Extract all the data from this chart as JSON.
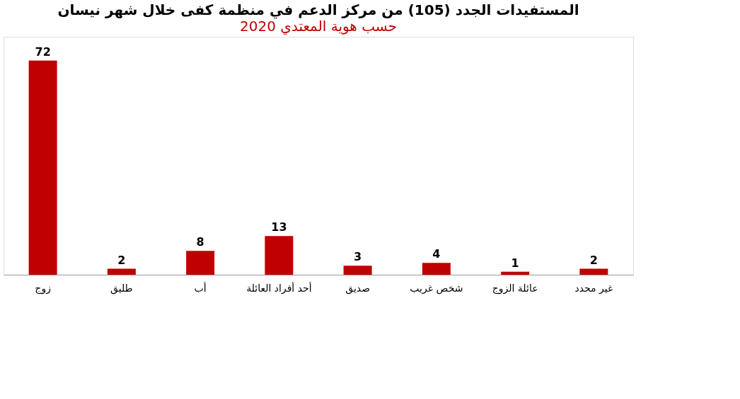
{
  "chart_data": {
    "type": "bar",
    "title": "المستفيدات الجدد (105) من مركز الدعم في منظمة كفى خلال شهر نيسان",
    "subtitle": "2020 حسب هوية المعتدي",
    "categories": [
      "زوج",
      "طليق",
      "أب",
      "أحد أفراد العائلة",
      "صديق",
      "شخص غريب",
      "عائلة الزوج",
      "غير محدد"
    ],
    "values": [
      72,
      2,
      8,
      13,
      3,
      4,
      1,
      2
    ],
    "color": "#c00000",
    "data_labels": true,
    "tick_labels": "x"
  }
}
